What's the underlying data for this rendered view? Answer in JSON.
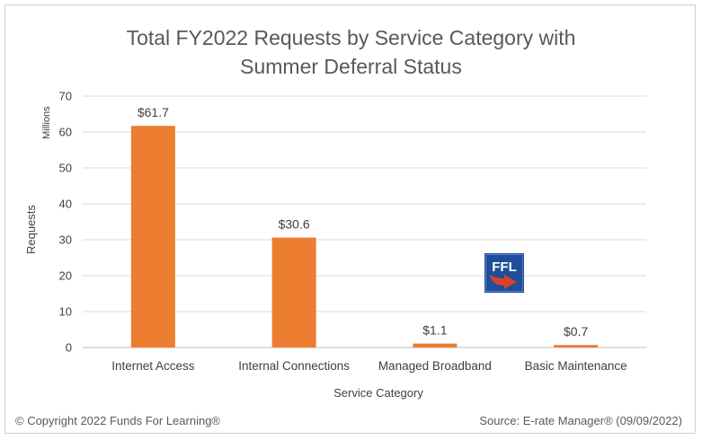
{
  "title_line1": "Total FY2022 Requests by Service Category with",
  "title_line2": "Summer Deferral Status",
  "footer": {
    "copyright": "© Copyright 2022 Funds For Learning®",
    "source": "Source: E-rate Manager® (09/09/2022)"
  },
  "logo": {
    "text": "FFL",
    "icon": "ffl-logo-icon"
  },
  "colors": {
    "bar": "#ED7D31",
    "grid": "#D9D9D9",
    "text": "#404040",
    "title": "#595959"
  },
  "chart_data": {
    "type": "bar",
    "title": "Total FY2022 Requests by Service Category with Summer Deferral Status",
    "xlabel": "Service Category",
    "ylabel": "Requests",
    "yunits": "Millions",
    "categories": [
      "Internet Access",
      "Internal Connections",
      "Managed Broadband",
      "Basic Maintenance"
    ],
    "values": [
      61.7,
      30.6,
      1.1,
      0.7
    ],
    "data_labels": [
      "$61.7",
      "$30.6",
      "$1.1",
      "$0.7"
    ],
    "ylim": [
      0,
      70
    ],
    "yticks": [
      0,
      10,
      20,
      30,
      40,
      50,
      60,
      70
    ],
    "grid": true,
    "legend": "none"
  }
}
